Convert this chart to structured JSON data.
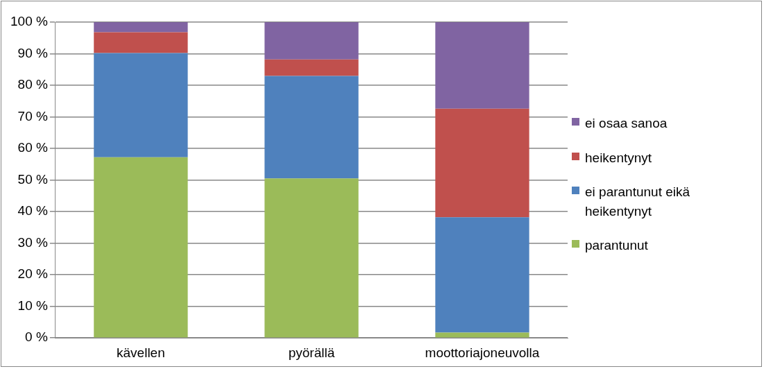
{
  "chart_data": {
    "type": "bar",
    "stacked": true,
    "categories": [
      "kävellen",
      "pyörällä",
      "moottoriajoneuvolla"
    ],
    "series": [
      {
        "name": "parantunut",
        "color": "#9bbb59",
        "values": [
          57.2,
          50.5,
          1.7
        ]
      },
      {
        "name": "ei parantunut eikä heikentynyt",
        "color": "#4f81bd",
        "values": [
          33.0,
          32.5,
          36.5
        ]
      },
      {
        "name": "heikentynyt",
        "color": "#c0504d",
        "values": [
          6.6,
          5.2,
          34.4
        ]
      },
      {
        "name": "ei osaa sanoa",
        "color": "#8064a2",
        "values": [
          3.2,
          11.8,
          27.4
        ]
      }
    ],
    "ylim": [
      0,
      100
    ],
    "yticks": [
      {
        "value": 0,
        "label": "0 %"
      },
      {
        "value": 10,
        "label": "10 %"
      },
      {
        "value": 20,
        "label": "20 %"
      },
      {
        "value": 30,
        "label": "30 %"
      },
      {
        "value": 40,
        "label": "40 %"
      },
      {
        "value": 50,
        "label": "50 %"
      },
      {
        "value": 60,
        "label": "60 %"
      },
      {
        "value": 70,
        "label": "70 %"
      },
      {
        "value": 80,
        "label": "80 %"
      },
      {
        "value": 90,
        "label": "90 %"
      },
      {
        "value": 100,
        "label": "100 %"
      }
    ],
    "grid": "y",
    "legend": "right"
  }
}
